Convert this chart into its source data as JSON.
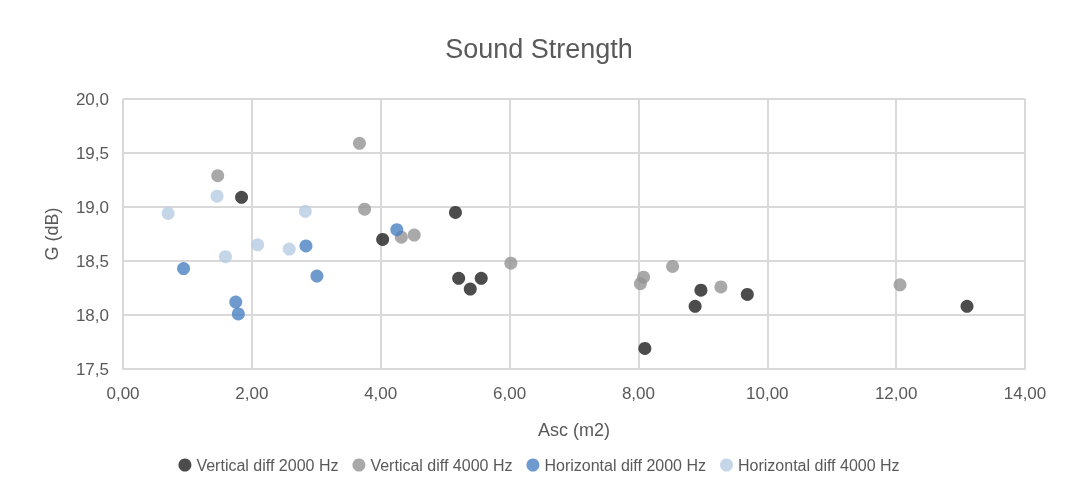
{
  "chart_data": {
    "type": "scatter",
    "title": "Sound Strength",
    "xlabel": "Asc (m2)",
    "ylabel": "G (dB)",
    "xlim": [
      0,
      14
    ],
    "xticks": [
      {
        "value": 0,
        "label": "0,00"
      },
      {
        "value": 2,
        "label": "2,00"
      },
      {
        "value": 4,
        "label": "4,00"
      },
      {
        "value": 6,
        "label": "6,00"
      },
      {
        "value": 8,
        "label": "8,00"
      },
      {
        "value": 10,
        "label": "10,00"
      },
      {
        "value": 12,
        "label": "12,00"
      },
      {
        "value": 14,
        "label": "14,00"
      }
    ],
    "ylim": [
      17.5,
      20
    ],
    "yticks": [
      {
        "value": 17.5,
        "label": "17,5"
      },
      {
        "value": 18,
        "label": "18,0"
      },
      {
        "value": 18.5,
        "label": "18,5"
      },
      {
        "value": 19,
        "label": "19,0"
      },
      {
        "value": 19.5,
        "label": "19,5"
      },
      {
        "value": 20,
        "label": "20,0"
      }
    ],
    "grid": true,
    "legend": "bottom",
    "marker": "circle",
    "series": [
      {
        "name": "Vertical diff 2000 Hz",
        "color": "#1f1f1f",
        "x": [
          1.84,
          4.03,
          5.16,
          5.21,
          5.39,
          5.56,
          8.1,
          8.88,
          8.97,
          9.69,
          13.1
        ],
        "values": [
          19.09,
          18.7,
          18.95,
          18.34,
          18.24,
          18.34,
          17.69,
          18.08,
          18.23,
          18.19,
          18.08
        ]
      },
      {
        "name": "Vertical diff 4000 Hz",
        "color": "#939393",
        "x": [
          1.47,
          3.67,
          3.75,
          4.32,
          4.52,
          6.02,
          8.03,
          8.08,
          8.53,
          9.28,
          12.06
        ],
        "values": [
          19.29,
          19.59,
          18.98,
          18.72,
          18.74,
          18.48,
          18.29,
          18.35,
          18.45,
          18.26,
          18.28
        ]
      },
      {
        "name": "Horizontal diff 2000 Hz",
        "color": "#4a81c0",
        "x": [
          0.94,
          1.75,
          1.79,
          2.84,
          3.01,
          4.25
        ],
        "values": [
          18.43,
          18.12,
          18.01,
          18.64,
          18.36,
          18.79
        ]
      },
      {
        "name": "Horizontal diff 4000 Hz",
        "color": "#b8cce4",
        "x": [
          0.7,
          1.46,
          1.59,
          2.09,
          2.58,
          2.83
        ],
        "values": [
          18.94,
          19.1,
          18.54,
          18.65,
          18.61,
          18.96
        ]
      }
    ]
  }
}
